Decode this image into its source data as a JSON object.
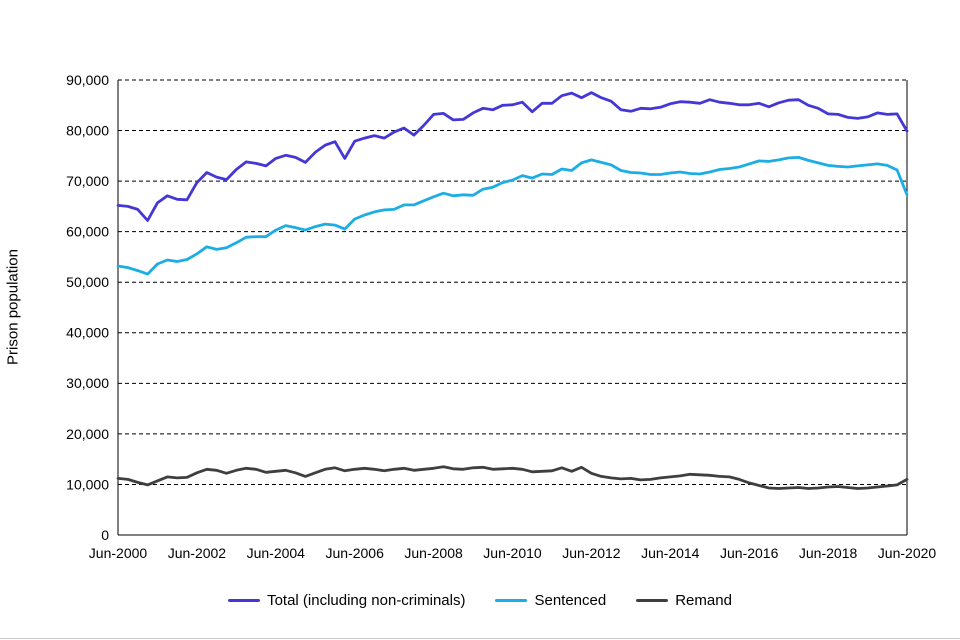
{
  "chart_data": {
    "type": "line",
    "title": "",
    "xlabel": "",
    "ylabel": "Prison population",
    "ylim": [
      0,
      90000
    ],
    "ytick_step": 10000,
    "grid": "horizontal-dashed",
    "legend_position": "bottom",
    "x_frequency": "quarterly (Jun-2000 to Jun-2020)",
    "x_tick_labels": [
      "Jun-2000",
      "Jun-2002",
      "Jun-2004",
      "Jun-2006",
      "Jun-2008",
      "Jun-2010",
      "Jun-2012",
      "Jun-2014",
      "Jun-2016",
      "Jun-2018",
      "Jun-2020"
    ],
    "series": [
      {
        "name": "Total (including non-criminals)",
        "color": "#4537D6",
        "values": [
          65200,
          65000,
          64400,
          62200,
          65700,
          67100,
          66400,
          66300,
          69700,
          71700,
          70800,
          70300,
          72300,
          73800,
          73500,
          73000,
          74500,
          75100,
          74700,
          73700,
          75700,
          77100,
          77800,
          74500,
          77900,
          78500,
          79000,
          78500,
          79700,
          80500,
          79100,
          81000,
          83200,
          83400,
          82100,
          82200,
          83500,
          84400,
          84100,
          85000,
          85100,
          85600,
          83700,
          85400,
          85400,
          86900,
          87400,
          86500,
          87500,
          86500,
          85800,
          84100,
          83800,
          84400,
          84300,
          84600,
          85300,
          85700,
          85600,
          85400,
          86100,
          85600,
          85400,
          85100,
          85100,
          85400,
          84700,
          85500,
          86000,
          86100,
          85000,
          84400,
          83300,
          83200,
          82600,
          82400,
          82700,
          83500,
          83200,
          83300,
          79900
        ]
      },
      {
        "name": "Sentenced",
        "color": "#1CADE4",
        "values": [
          53200,
          52900,
          52300,
          51600,
          53600,
          54400,
          54100,
          54500,
          55600,
          57000,
          56500,
          56800,
          57800,
          58900,
          59000,
          59000,
          60300,
          61200,
          60800,
          60300,
          61000,
          61500,
          61300,
          60500,
          62500,
          63300,
          63900,
          64300,
          64400,
          65300,
          65300,
          66100,
          66900,
          67600,
          67100,
          67300,
          67200,
          68400,
          68800,
          69700,
          70200,
          71100,
          70600,
          71400,
          71300,
          72400,
          72100,
          73600,
          74200,
          73700,
          73200,
          72100,
          71700,
          71600,
          71300,
          71300,
          71600,
          71800,
          71500,
          71400,
          71800,
          72300,
          72500,
          72800,
          73400,
          74000,
          73900,
          74200,
          74600,
          74700,
          74100,
          73600,
          73100,
          72900,
          72800,
          73000,
          73200,
          73400,
          73100,
          72200,
          67300
        ]
      },
      {
        "name": "Remand",
        "color": "#3F3F3F",
        "values": [
          11200,
          11000,
          10400,
          9900,
          10700,
          11500,
          11300,
          11400,
          12300,
          13000,
          12800,
          12200,
          12800,
          13200,
          13000,
          12400,
          12600,
          12800,
          12300,
          11600,
          12300,
          13000,
          13300,
          12700,
          13000,
          13200,
          13000,
          12700,
          13000,
          13200,
          12800,
          13000,
          13200,
          13500,
          13100,
          13000,
          13300,
          13400,
          13000,
          13100,
          13200,
          13000,
          12500,
          12600,
          12700,
          13300,
          12600,
          13400,
          12200,
          11600,
          11300,
          11100,
          11200,
          10900,
          11000,
          11300,
          11500,
          11700,
          12000,
          11900,
          11800,
          11600,
          11500,
          11000,
          10300,
          9800,
          9300,
          9200,
          9300,
          9400,
          9200,
          9300,
          9500,
          9600,
          9400,
          9200,
          9300,
          9500,
          9700,
          9900,
          11000
        ]
      }
    ]
  }
}
